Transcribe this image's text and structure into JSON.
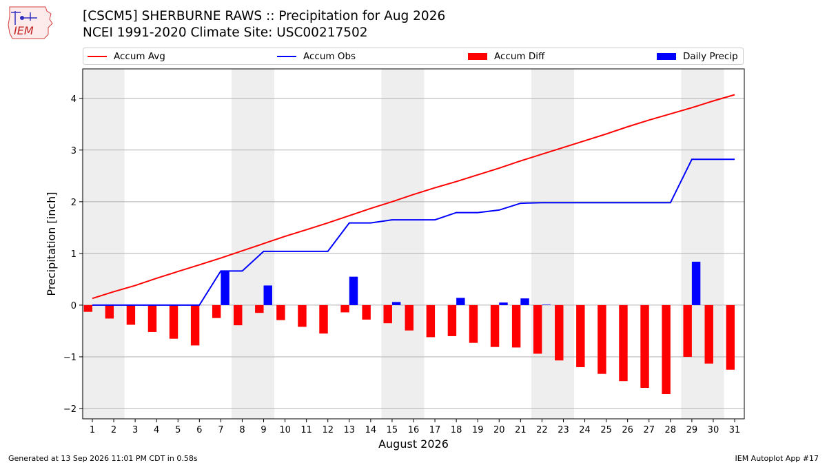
{
  "header": {
    "title_line1": "[CSCM5] SHERBURNE RAWS :: Precipitation for Aug 2026",
    "title_line2": "NCEI 1991-2020 Climate Site: USC00217502"
  },
  "logo": {
    "text": "IEM"
  },
  "footer": {
    "generated": "Generated at 13 Sep 2026 11:01 PM CDT in 0.58s",
    "app": "IEM Autoplot App #17"
  },
  "colors": {
    "accum_avg": "#ff0000",
    "accum_obs": "#0000ff",
    "accum_diff": "#ff0000",
    "daily_precip": "#0000ff",
    "weekend_shade": "#eeeeee",
    "grid": "#b0b0b0"
  },
  "chart_data": {
    "type": "bar",
    "title": "[CSCM5] SHERBURNE RAWS :: Precipitation for Aug 2026",
    "xlabel": "August 2026",
    "ylabel": "Precipitation [inch]",
    "ylim": [
      -2.2,
      4.57
    ],
    "yticks": [
      -2,
      -1,
      0,
      1,
      2,
      3,
      4
    ],
    "ytick_labels": [
      "−2",
      "−1",
      "0",
      "1",
      "2",
      "3",
      "4"
    ],
    "grid": true,
    "legend_position": "top",
    "shaded_weekends": [
      [
        1,
        2
      ],
      [
        8,
        9
      ],
      [
        15,
        16
      ],
      [
        22,
        23
      ],
      [
        29,
        30
      ]
    ],
    "x": [
      1,
      2,
      3,
      4,
      5,
      6,
      7,
      8,
      9,
      10,
      11,
      12,
      13,
      14,
      15,
      16,
      17,
      18,
      19,
      20,
      21,
      22,
      23,
      24,
      25,
      26,
      27,
      28,
      29,
      30,
      31
    ],
    "series": [
      {
        "name": "Accum Avg",
        "type": "line",
        "values": [
          0.13,
          0.26,
          0.38,
          0.52,
          0.65,
          0.78,
          0.91,
          1.05,
          1.19,
          1.33,
          1.46,
          1.59,
          1.73,
          1.87,
          2.0,
          2.14,
          2.27,
          2.39,
          2.52,
          2.65,
          2.79,
          2.92,
          3.05,
          3.18,
          3.31,
          3.45,
          3.58,
          3.7,
          3.82,
          3.95,
          4.07
        ]
      },
      {
        "name": "Accum Obs",
        "type": "line",
        "values": [
          0,
          0,
          0,
          0,
          0,
          0,
          0.66,
          0.66,
          1.04,
          1.04,
          1.04,
          1.04,
          1.59,
          1.59,
          1.65,
          1.65,
          1.65,
          1.79,
          1.79,
          1.84,
          1.97,
          1.98,
          1.98,
          1.98,
          1.98,
          1.98,
          1.98,
          1.98,
          2.82,
          2.82,
          2.82
        ]
      },
      {
        "name": "Accum Diff",
        "type": "bar",
        "values": [
          -0.13,
          -0.26,
          -0.38,
          -0.52,
          -0.65,
          -0.78,
          -0.25,
          -0.39,
          -0.15,
          -0.29,
          -0.42,
          -0.55,
          -0.14,
          -0.28,
          -0.35,
          -0.49,
          -0.62,
          -0.6,
          -0.73,
          -0.81,
          -0.82,
          -0.94,
          -1.07,
          -1.2,
          -1.33,
          -1.47,
          -1.6,
          -1.72,
          -1.0,
          -1.13,
          -1.25
        ]
      },
      {
        "name": "Daily Precip",
        "type": "bar",
        "values": [
          0,
          0,
          0,
          0,
          0,
          0,
          0.66,
          0,
          0.38,
          0,
          0,
          0,
          0.55,
          0,
          0.06,
          0,
          0,
          0.14,
          0,
          0.05,
          0.13,
          0.01,
          0,
          0,
          0,
          0,
          0,
          0,
          0.84,
          0,
          0
        ]
      }
    ]
  }
}
